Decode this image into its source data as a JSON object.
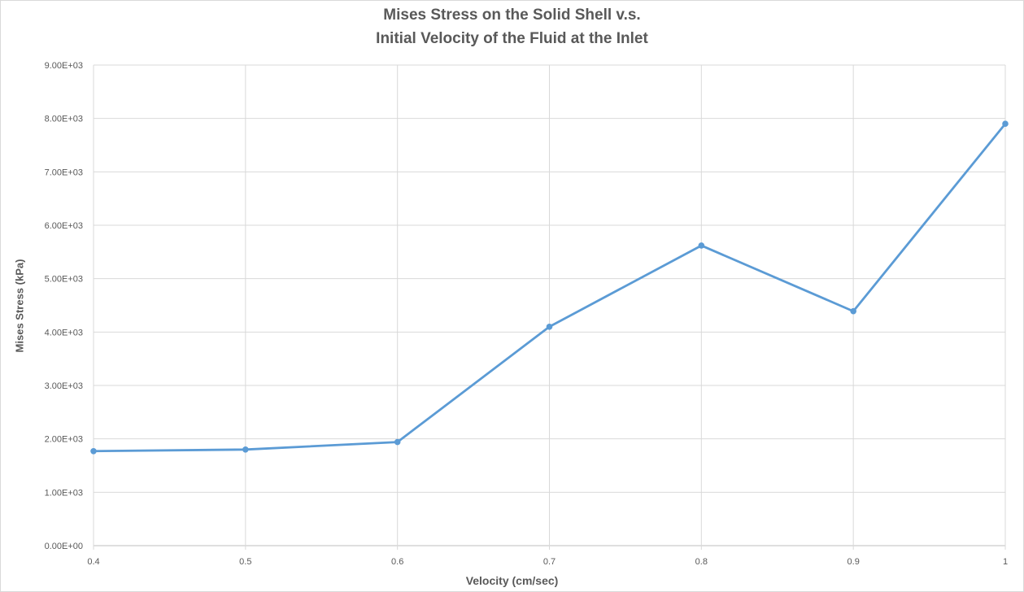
{
  "chart_data": {
    "type": "line",
    "title_lines": [
      "Mises Stress on the Solid Shell v.s.",
      "Initial Velocity of the Fluid at the Inlet"
    ],
    "xlabel": "Velocity (cm/sec)",
    "ylabel": "Mises Stress (kPa)",
    "x": [
      0.4,
      0.5,
      0.6,
      0.7,
      0.8,
      0.9,
      1
    ],
    "x_tick_labels": [
      "0.4",
      "0.5",
      "0.6",
      "0.7",
      "0.8",
      "0.9",
      "1"
    ],
    "y_tick_values": [
      0,
      1000,
      2000,
      3000,
      4000,
      5000,
      6000,
      7000,
      8000,
      9000
    ],
    "y_tick_labels": [
      "0.00E+00",
      "1.00E+03",
      "2.00E+03",
      "3.00E+03",
      "4.00E+03",
      "5.00E+03",
      "6.00E+03",
      "7.00E+03",
      "8.00E+03",
      "9.00E+03"
    ],
    "xlim": [
      0.4,
      1
    ],
    "ylim": [
      0,
      9000
    ],
    "grid": true,
    "legend": "none",
    "series": [
      {
        "values": [
          1770,
          1800,
          1940,
          4100,
          5620,
          4390,
          7900
        ],
        "color": "#5b9bd5"
      }
    ]
  }
}
